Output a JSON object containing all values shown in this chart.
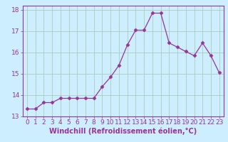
{
  "x": [
    0,
    1,
    2,
    3,
    4,
    5,
    6,
    7,
    8,
    9,
    10,
    11,
    12,
    13,
    14,
    15,
    16,
    17,
    18,
    19,
    20,
    21,
    22,
    23
  ],
  "y": [
    13.35,
    13.35,
    13.65,
    13.65,
    13.85,
    13.85,
    13.85,
    13.85,
    13.85,
    14.4,
    14.85,
    15.4,
    16.35,
    17.05,
    17.05,
    17.85,
    17.85,
    16.45,
    16.25,
    16.05,
    15.85,
    16.45,
    15.85,
    15.05
  ],
  "line_color": "#993399",
  "marker": "D",
  "marker_size": 2.5,
  "bg_color": "#cceeff",
  "grid_color": "#aaccbb",
  "xlabel": "Windchill (Refroidissement éolien,°C)",
  "xlim": [
    -0.5,
    23.5
  ],
  "ylim": [
    13.0,
    18.2
  ],
  "xticks": [
    0,
    1,
    2,
    3,
    4,
    5,
    6,
    7,
    8,
    9,
    10,
    11,
    12,
    13,
    14,
    15,
    16,
    17,
    18,
    19,
    20,
    21,
    22,
    23
  ],
  "yticks": [
    13,
    14,
    15,
    16,
    17,
    18
  ],
  "xlabel_fontsize": 7,
  "tick_fontsize": 6.5,
  "axis_label_color": "#993399",
  "tick_color": "#993399",
  "spine_color": "#993399"
}
